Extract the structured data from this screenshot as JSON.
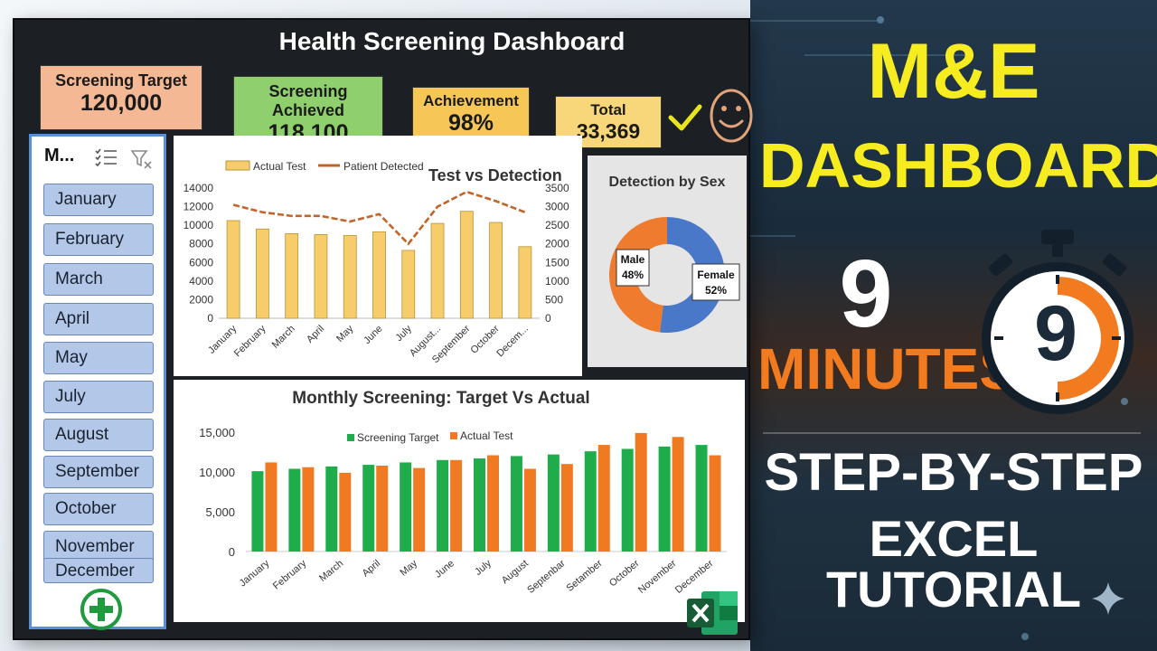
{
  "dashboard": {
    "title": "Health Screening Dashboard",
    "kpis": [
      {
        "label": "Screening Target",
        "value": "120,000"
      },
      {
        "label": "Screening Achieved",
        "value": "118,100"
      },
      {
        "label": "Achievement",
        "value": "98%"
      },
      {
        "label": "Total",
        "value": "33,369"
      }
    ],
    "status_icons": [
      "check-icon",
      "smile-icon"
    ]
  },
  "slicer": {
    "title": "M...",
    "items": [
      "January",
      "February",
      "March",
      "April",
      "May",
      "July",
      "August",
      "September",
      "October",
      "November",
      "December"
    ],
    "icons": [
      "multi-select-icon",
      "clear-filter-icon",
      "add-icon"
    ]
  },
  "colors": {
    "bar_yellow": "#f7cd6b",
    "line_brown": "#c0652a",
    "target_green": "#1fad4c",
    "actual_orange": "#ef7a22",
    "pie_orange": "#ee7b2e",
    "pie_blue": "#4a78c8",
    "hero_yellow": "#f7ec1f",
    "hero_orange": "#f27a1f"
  },
  "chart_data": [
    {
      "type": "bar",
      "title": "Test vs Detection",
      "legend": [
        "Actual Test",
        "Patient Detected"
      ],
      "categories": [
        "January",
        "February",
        "March",
        "April",
        "May",
        "June",
        "July",
        "August...",
        "September",
        "October",
        "Decem..."
      ],
      "series": [
        {
          "name": "Actual Test",
          "type": "bar",
          "axis": "left",
          "values": [
            10500,
            9600,
            9100,
            9000,
            8900,
            9300,
            7300,
            10200,
            11500,
            10300,
            7700
          ]
        },
        {
          "name": "Patient Detected",
          "type": "line",
          "axis": "right",
          "values": [
            3050,
            2850,
            2750,
            2750,
            2600,
            2800,
            2000,
            3000,
            3400,
            3150,
            2850
          ]
        }
      ],
      "y_left_ticks": [
        "0",
        "2000",
        "4000",
        "6000",
        "8000",
        "10000",
        "12000",
        "14000"
      ],
      "y_right_ticks": [
        "0",
        "500",
        "1000",
        "1500",
        "2000",
        "2500",
        "3000",
        "3500"
      ],
      "ylim_left": [
        0,
        14000
      ],
      "ylim_right": [
        0,
        3500
      ],
      "legend_position": "top-left"
    },
    {
      "type": "pie",
      "title": "Detection by Sex",
      "labels": [
        "Male",
        "Female"
      ],
      "values": [
        48,
        52
      ],
      "data_labels": [
        "48%",
        "52%"
      ]
    },
    {
      "type": "bar",
      "title": "Monthly Screening: Target Vs Actual",
      "legend": [
        "Screening Target",
        "Actual Test"
      ],
      "categories": [
        "January",
        "February",
        "March",
        "April",
        "May",
        "June",
        "July",
        "August",
        "Septenbar",
        "Setamber",
        "October",
        "November",
        "December"
      ],
      "series": [
        {
          "name": "Screening Target",
          "values": [
            10100,
            10400,
            10700,
            10900,
            11200,
            11500,
            11700,
            12000,
            12200,
            12600,
            12900,
            13200,
            13400
          ]
        },
        {
          "name": "Actual Test",
          "values": [
            11200,
            10600,
            9900,
            10800,
            10500,
            11500,
            12100,
            10400,
            11000,
            13400,
            14900,
            14400,
            12100
          ]
        }
      ],
      "y_ticks": [
        "0",
        "5,000",
        "10,000",
        "15,000"
      ],
      "ylim": [
        0,
        15000
      ],
      "legend_position": "top-center"
    }
  ],
  "promo": {
    "title_line1": "M&E",
    "title_line2": "DASHBOARD",
    "minutes_number": "9",
    "minutes_label": "MINUTES",
    "timer_digit": "9",
    "step_line": "STEP-BY-STEP",
    "tutorial_line": "EXCEL TUTORIAL",
    "icons": [
      "stopwatch-icon",
      "excel-icon",
      "sparkle-icon"
    ]
  }
}
